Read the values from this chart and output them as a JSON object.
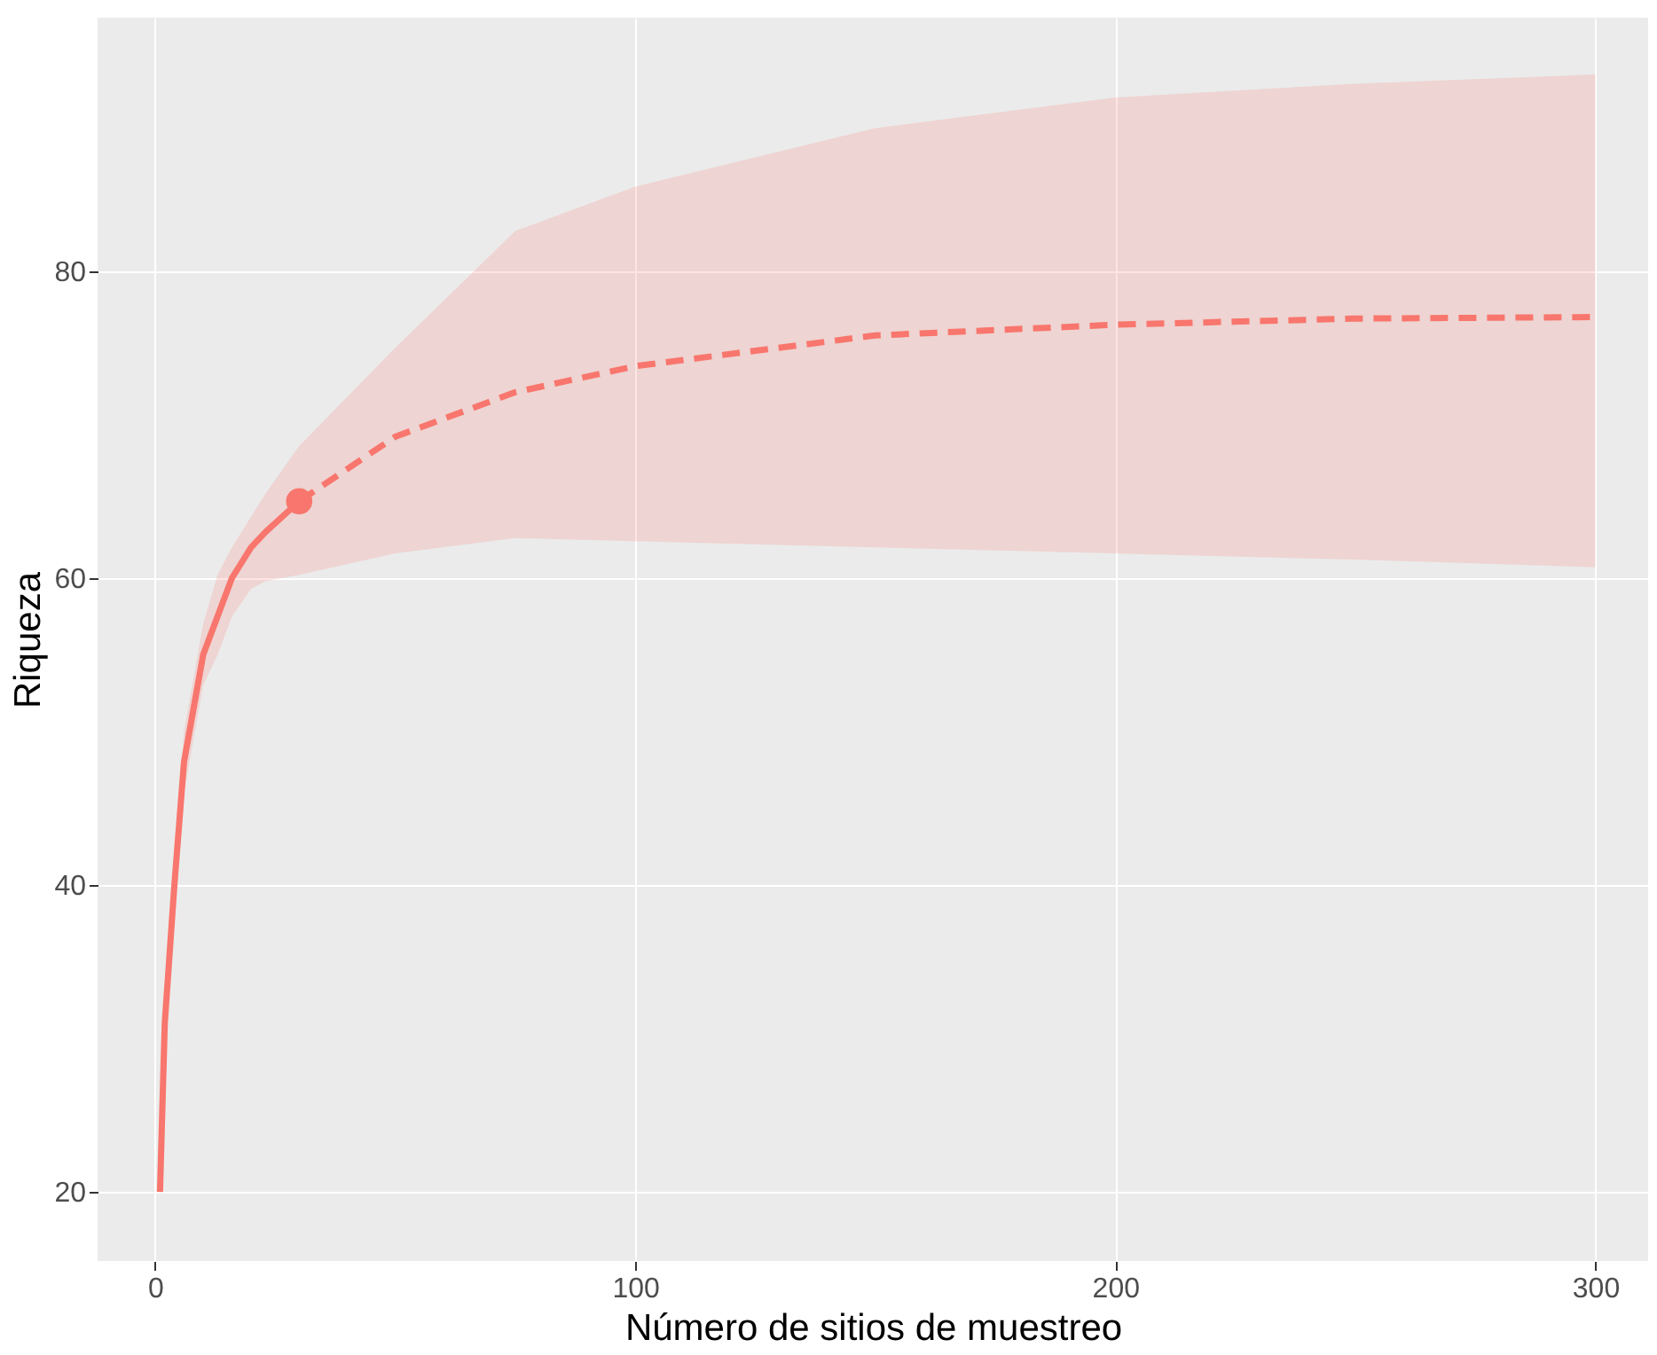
{
  "chart_data": {
    "type": "line",
    "xlabel": "Número de sitios de muestreo",
    "ylabel": "Riqueza",
    "xlim": [
      -12,
      311
    ],
    "ylim": [
      15.5,
      96.5
    ],
    "xticks": [
      0,
      100,
      200,
      300
    ],
    "yticks": [
      20,
      40,
      60,
      80
    ],
    "grid": true,
    "series": [
      {
        "type": "line",
        "line_style": "solid",
        "color": "#f8766d",
        "x": [
          1,
          2,
          4,
          6,
          10,
          13,
          16,
          20,
          23,
          30
        ],
        "values": [
          20,
          31,
          40,
          48,
          55,
          57.5,
          60,
          62,
          63,
          65
        ],
        "lower": [
          20,
          30,
          38.5,
          46,
          53,
          55,
          57.5,
          59.3,
          59.8,
          60.2
        ],
        "upper": [
          20,
          32,
          41.5,
          50,
          57,
          60.2,
          62,
          64,
          65.5,
          68.6
        ]
      },
      {
        "type": "line",
        "line_style": "dashed",
        "color": "#f8766d",
        "x": [
          30,
          50,
          75,
          100,
          150,
          200,
          250,
          300
        ],
        "values": [
          65,
          69.2,
          72.1,
          73.8,
          75.8,
          76.5,
          76.9,
          77
        ],
        "lower": [
          60.2,
          61.6,
          62.6,
          62.4,
          62,
          61.6,
          61.2,
          60.7
        ],
        "upper": [
          68.6,
          75,
          82.6,
          85.5,
          89.3,
          91.3,
          92.2,
          92.8
        ]
      },
      {
        "type": "scatter",
        "marker": "circle",
        "color": "#f8766d",
        "x": [
          30
        ],
        "values": [
          65
        ]
      }
    ]
  }
}
